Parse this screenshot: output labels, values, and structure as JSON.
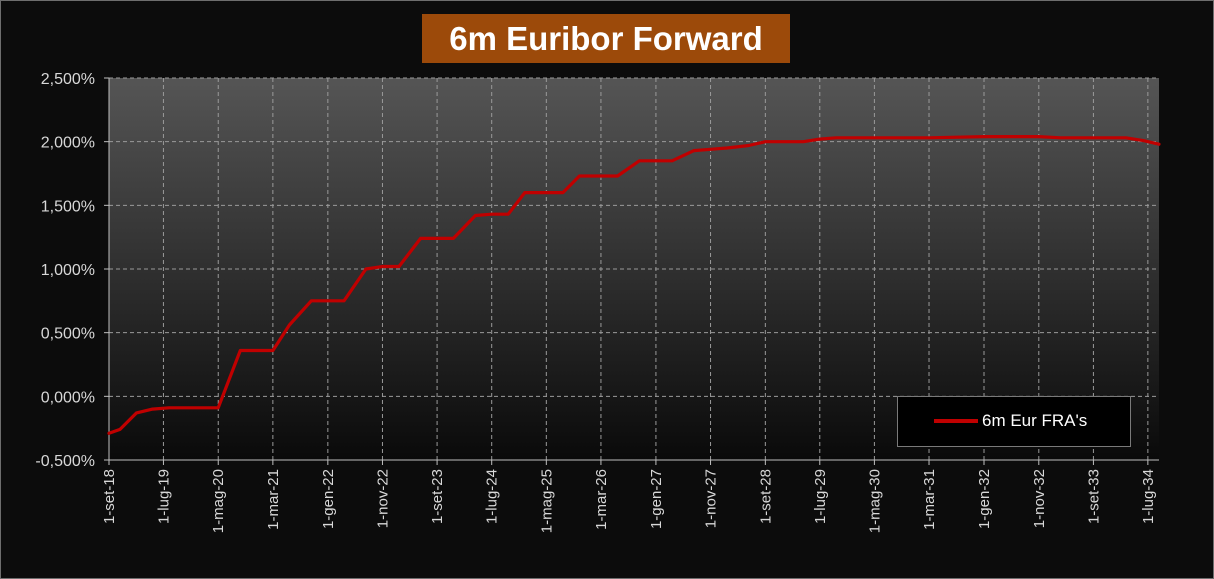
{
  "title": "6m Euribor Forward",
  "colors": {
    "title_bg": "#9c4a0a",
    "series": "#c00000",
    "plot_top": "#555555",
    "plot_bottom": "#0a0a0a"
  },
  "legend": {
    "label": "6m Eur FRA's",
    "position": "bottom-right"
  },
  "chart_data": {
    "type": "line",
    "title": "6m Euribor Forward",
    "xlabel": "",
    "ylabel": "",
    "ylim": [
      -0.5,
      2.5
    ],
    "grid": true,
    "y_ticks": [
      "2,500%",
      "2,000%",
      "1,500%",
      "1,000%",
      "0,500%",
      "0,000%",
      "-0,500%"
    ],
    "y_tick_values": [
      2.5,
      2.0,
      1.5,
      1.0,
      0.5,
      0.0,
      -0.5
    ],
    "x_ticks": [
      "1-set-18",
      "1-lug-19",
      "1-mag-20",
      "1-mar-21",
      "1-gen-22",
      "1-nov-22",
      "1-set-23",
      "1-lug-24",
      "1-mag-25",
      "1-mar-26",
      "1-gen-27",
      "1-nov-27",
      "1-set-28",
      "1-lug-29",
      "1-mag-30",
      "1-mar-31",
      "1-gen-32",
      "1-nov-32",
      "1-set-33",
      "1-lug-34"
    ],
    "x_tick_dates": [
      "2018-09-01",
      "2019-07-01",
      "2020-05-01",
      "2021-03-01",
      "2022-01-01",
      "2022-11-01",
      "2023-09-01",
      "2024-07-01",
      "2025-05-01",
      "2026-03-01",
      "2027-01-01",
      "2027-11-01",
      "2028-09-01",
      "2029-07-01",
      "2030-05-01",
      "2031-03-01",
      "2032-01-01",
      "2032-11-01",
      "2033-09-01",
      "2034-07-01"
    ],
    "x_range": [
      "2018-09-01",
      "2034-09-01"
    ],
    "series": [
      {
        "name": "6m Eur FRA's",
        "x": [
          "2018-09-01",
          "2018-11-01",
          "2019-02-01",
          "2019-05-01",
          "2019-08-01",
          "2019-11-01",
          "2020-02-01",
          "2020-05-01",
          "2020-09-01",
          "2020-12-01",
          "2021-03-01",
          "2021-06-01",
          "2021-10-01",
          "2022-01-01",
          "2022-04-01",
          "2022-08-01",
          "2022-11-01",
          "2023-02-01",
          "2023-06-01",
          "2023-09-01",
          "2023-12-01",
          "2024-04-01",
          "2024-07-01",
          "2024-10-01",
          "2025-01-01",
          "2025-05-01",
          "2025-08-01",
          "2025-11-01",
          "2026-03-01",
          "2026-06-01",
          "2026-10-01",
          "2027-01-01",
          "2027-04-01",
          "2027-08-01",
          "2027-11-01",
          "2028-02-01",
          "2028-06-01",
          "2028-09-01",
          "2028-12-01",
          "2029-04-01",
          "2029-07-01",
          "2029-10-01",
          "2030-02-01",
          "2030-05-01",
          "2030-09-01",
          "2031-03-01",
          "2032-01-01",
          "2032-07-01",
          "2032-11-01",
          "2033-03-01",
          "2033-09-01",
          "2034-03-01",
          "2034-06-01",
          "2034-09-01"
        ],
        "values": [
          -0.29,
          -0.26,
          -0.13,
          -0.1,
          -0.09,
          -0.09,
          -0.09,
          -0.09,
          0.36,
          0.36,
          0.36,
          0.56,
          0.75,
          0.75,
          0.75,
          1.0,
          1.02,
          1.02,
          1.24,
          1.24,
          1.24,
          1.42,
          1.43,
          1.43,
          1.6,
          1.6,
          1.6,
          1.73,
          1.73,
          1.73,
          1.85,
          1.85,
          1.85,
          1.93,
          1.94,
          1.95,
          1.97,
          2.0,
          2.0,
          2.0,
          2.02,
          2.03,
          2.03,
          2.03,
          2.03,
          2.03,
          2.04,
          2.04,
          2.04,
          2.03,
          2.03,
          2.03,
          2.01,
          1.98
        ]
      }
    ]
  }
}
